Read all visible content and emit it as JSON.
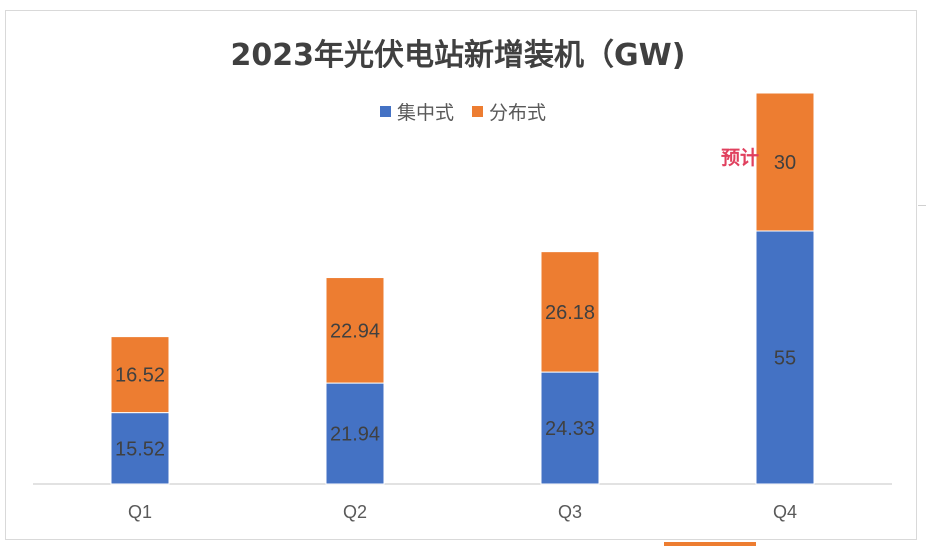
{
  "chart_data": {
    "type": "bar",
    "stacked": true,
    "title": "2023年光伏电站新增装机（GW)",
    "categories": [
      "Q1",
      "Q2",
      "Q3",
      "Q4"
    ],
    "series": [
      {
        "name": "集中式",
        "values": [
          15.52,
          21.94,
          24.33,
          55
        ],
        "color": "#4472c4"
      },
      {
        "name": "分布式",
        "values": [
          16.52,
          22.94,
          26.18,
          30
        ],
        "color": "#ed7d31"
      }
    ],
    "data_labels": {
      "集中式": [
        "15.52",
        "21.94",
        "24.33",
        "55"
      ],
      "分布式": [
        "16.52",
        "22.94",
        "26.18",
        "30"
      ]
    },
    "ylim": [
      0,
      95
    ],
    "grid": false,
    "legend_position": "top",
    "annotation": {
      "text": "预计",
      "category": "Q4",
      "color": "#e0405e"
    }
  }
}
